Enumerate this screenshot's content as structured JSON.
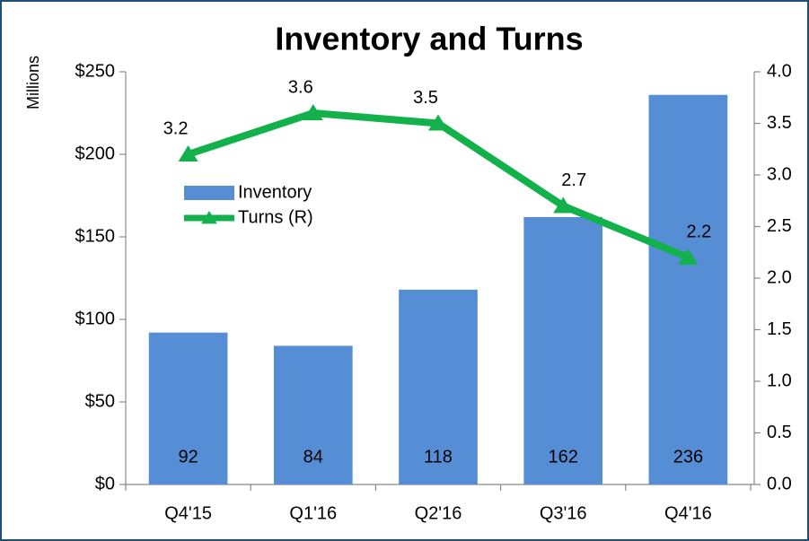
{
  "chart_data": {
    "type": "bar_line",
    "title": "Inventory and Turns",
    "y_label": "Millions",
    "categories": [
      "Q4'15",
      "Q1'16",
      "Q2'16",
      "Q3'16",
      "Q4'16"
    ],
    "series": [
      {
        "name": "Inventory",
        "color": "#558ed5",
        "values": [
          92,
          84,
          118,
          162,
          236
        ]
      },
      {
        "name": "Turns (R)",
        "color": "#13b14b",
        "values": [
          3.2,
          3.6,
          3.5,
          2.7,
          2.2
        ],
        "axis": "y2"
      }
    ],
    "ylim": [
      0,
      250
    ],
    "yticks": [
      {
        "value": 0,
        "label": "$0"
      },
      {
        "value": 50,
        "label": "$50"
      },
      {
        "value": 100,
        "label": "$100"
      },
      {
        "value": 150,
        "label": "$150"
      },
      {
        "value": 200,
        "label": "$200"
      },
      {
        "value": 250,
        "label": "$250"
      }
    ],
    "y2lim": [
      0,
      4
    ],
    "y2ticks": [
      {
        "value": 0,
        "label": "0.0"
      },
      0.5,
      {
        "value": 1,
        "label": "1.0"
      },
      1.5,
      {
        "value": 2,
        "label": "2.0"
      },
      2.5,
      {
        "value": 3,
        "label": "3.0"
      },
      3.5,
      {
        "value": 4,
        "label": "4.0"
      }
    ],
    "legend": "upper left"
  }
}
